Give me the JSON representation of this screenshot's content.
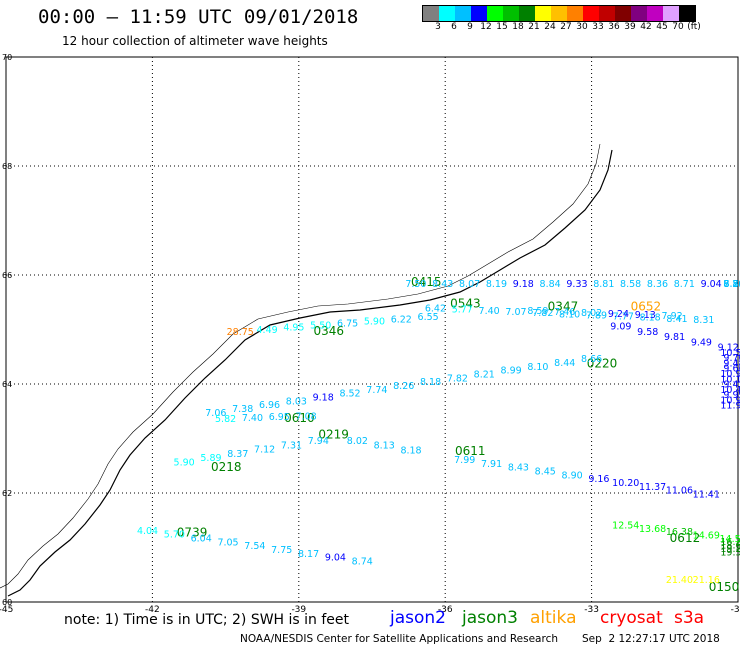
{
  "header": {
    "title": "00:00 – 11:59 UTC 09/01/2018",
    "subtitle": "12 hour collection of altimeter wave heights"
  },
  "legend": {
    "unit": "(ft)",
    "bins": [
      {
        "label": "3",
        "color": "#808080"
      },
      {
        "label": "6",
        "color": "#00ffff"
      },
      {
        "label": "9",
        "color": "#00c0ff"
      },
      {
        "label": "12",
        "color": "#0000ff"
      },
      {
        "label": "15",
        "color": "#00ff00"
      },
      {
        "label": "18",
        "color": "#00c000"
      },
      {
        "label": "21",
        "color": "#008000"
      },
      {
        "label": "24",
        "color": "#ffff00"
      },
      {
        "label": "27",
        "color": "#ffc000"
      },
      {
        "label": "30",
        "color": "#ff8000"
      },
      {
        "label": "33",
        "color": "#ff0000"
      },
      {
        "label": "36",
        "color": "#c00000"
      },
      {
        "label": "39",
        "color": "#800000"
      },
      {
        "label": "42",
        "color": "#800080"
      },
      {
        "label": "45",
        "color": "#c000c0"
      },
      {
        "label": "70",
        "color": "#e0a0ff"
      },
      {
        "label": "",
        "color": "#000000"
      }
    ]
  },
  "axes": {
    "lon_ticks": [
      "-45",
      "-42",
      "-39",
      "-36",
      "-33",
      "-30"
    ],
    "lon_values": [
      -45,
      -42,
      -39,
      -36,
      -33,
      -30
    ],
    "lat_ticks": [
      "70",
      "68",
      "66",
      "64",
      "62",
      "60"
    ],
    "lat_values": [
      70,
      68,
      66,
      64,
      62,
      60
    ],
    "lon_range": [
      -45,
      -30
    ],
    "lat_range": [
      60,
      70
    ]
  },
  "tracks": [
    {
      "time": "0415",
      "sat": "jason3",
      "label_lon": -36.7,
      "label_lat": 65.8,
      "lat_start": 66.8,
      "lat_end": 65.9,
      "values": [
        "7.50",
        "8.43",
        "8.07",
        "8.19",
        "9.18",
        "8.84",
        "9.33",
        "8.81",
        "8.58",
        "8.36",
        "8.71",
        "9.04",
        "8.86",
        "8.56",
        "8.80",
        "8.29",
        "7.76",
        "6.58"
      ],
      "segment": {
        "lon0": -36.6,
        "lat0": 65.9,
        "lon1": -30,
        "lat1": 65.9
      }
    },
    {
      "time": "0543",
      "sat": "jason3",
      "label_lon": -35.9,
      "label_lat": 65.4,
      "values": [
        "6.42",
        "5.77",
        "7.40",
        "7.07",
        "7.82",
        "8.10",
        "7.89",
        "7.77",
        "8.18",
        "8.41",
        "8.31"
      ]
    },
    {
      "time": "0347",
      "sat": "jason3",
      "label_lon": -33.9,
      "label_lat": 65.35,
      "values": [
        "8.59",
        "7.46",
        "8.02",
        "9.24",
        "9.13",
        "7.92"
      ]
    },
    {
      "time": "0652",
      "sat": "altika",
      "label_lon": -32.2,
      "label_lat": 65.35,
      "values": [
        "9.09",
        "9.58",
        "9.81",
        "9.49",
        "9.12",
        "10.59",
        "9.70",
        "9.48",
        "9.66",
        "10.90",
        "10.16",
        "9.41",
        "10.42",
        "9.99",
        "10.97",
        "11.99"
      ]
    },
    {
      "time": "0346",
      "sat": "jason3",
      "label_lon": -38.7,
      "label_lat": 64.9,
      "values": [
        "28.75",
        "4.49",
        "4.95",
        "5.50",
        "6.75",
        "5.90",
        "6.22",
        "6.55"
      ]
    },
    {
      "time": "0220",
      "sat": "jason3",
      "label_lon": -33.1,
      "label_lat": 64.3,
      "values": [
        "8.66",
        "8.44",
        "8.10",
        "8.99",
        "8.21",
        "7.82",
        "8.18",
        "8.26",
        "7.74",
        "8.52",
        "9.18",
        "8.03",
        "6.96",
        "7.38",
        "7.06"
      ]
    },
    {
      "time": "0610",
      "sat": "jason3",
      "label_lon": -39.3,
      "label_lat": 63.3,
      "values": [
        "5.82",
        "7.40",
        "6.95",
        "7.08"
      ]
    },
    {
      "time": "0219",
      "sat": "jason3",
      "label_lon": -38.6,
      "label_lat": 63.0,
      "values": [
        "7.94",
        "7.31",
        "7.12",
        "8.37",
        "5.89",
        "5.90"
      ]
    },
    {
      "time": "0218",
      "sat": "jason3",
      "label_lon": -40.8,
      "label_lat": 62.4,
      "values": [
        "8.02",
        "8.13",
        "8.18"
      ]
    },
    {
      "time": "0611",
      "sat": "jason3",
      "label_lon": -35.8,
      "label_lat": 62.7,
      "values": [
        "7.99",
        "7.91",
        "8.43",
        "8.45",
        "8.90",
        "9.16",
        "10.20",
        "11.37",
        "11.06",
        "11.41"
      ]
    },
    {
      "time": "0612",
      "sat": "jason3",
      "label_lon": -31.4,
      "label_lat": 61.1,
      "values": [
        "12.54",
        "13.68",
        "16.38",
        "14.69",
        "14.57",
        "16.24",
        "18.63",
        "19.27",
        "19.52"
      ]
    },
    {
      "time": "0739",
      "sat": "jason3",
      "label_lon": -41.5,
      "label_lat": 61.2,
      "values": [
        "4.04",
        "5.70",
        "6.04",
        "7.05",
        "7.54",
        "7.75",
        "8.17",
        "9.04",
        "8.74"
      ]
    },
    {
      "time": "0150",
      "sat": "jason3",
      "label_lon": -30.6,
      "label_lat": 60.2,
      "values": [
        "21.40",
        "21.16"
      ]
    }
  ],
  "note": "note: 1) Time is in UTC; 2) SWH is in feet",
  "satellites": [
    {
      "name": "jason2",
      "color": "#0000ff"
    },
    {
      "name": "jason3",
      "color": "#008000"
    },
    {
      "name": "altika",
      "color": "#ffa000"
    },
    {
      "name": "cryosat",
      "color": "#ff0000"
    },
    {
      "name": "s3a",
      "color": "#ff0000"
    }
  ],
  "credit": "NOAA/NESDIS Center for Satellite Applications and Research",
  "timestamp": "Sep  2 12:27:17 UTC 2018"
}
